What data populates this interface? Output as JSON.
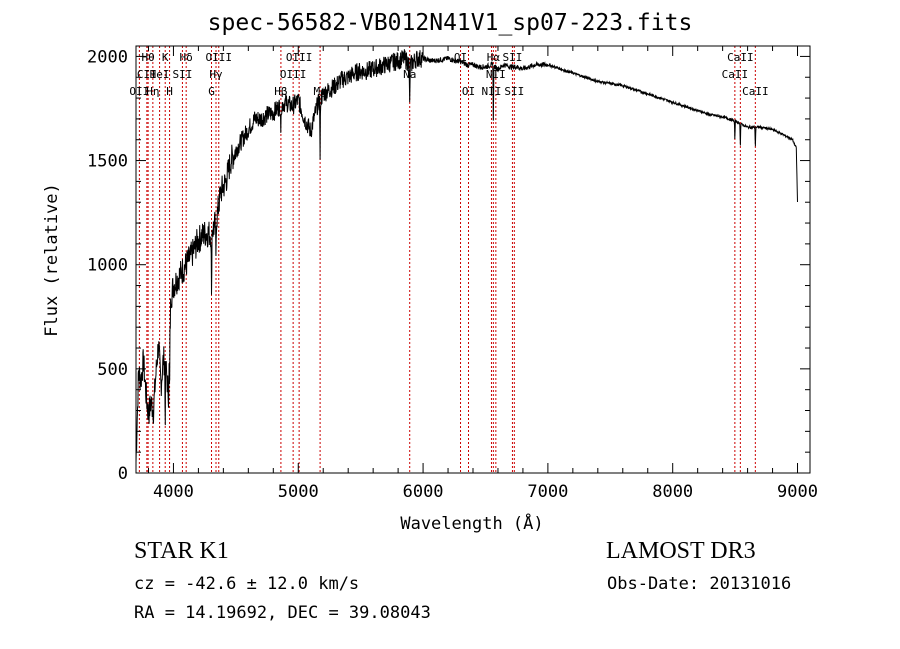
{
  "chart_data": {
    "type": "line",
    "title": "spec-56582-VB012N41V1_sp07-223.fits",
    "xlabel": "Wavelength (Å)",
    "ylabel": "Flux (relative)",
    "xlim": [
      3700,
      9100
    ],
    "ylim": [
      0,
      2050
    ],
    "xticks": [
      4000,
      5000,
      6000,
      7000,
      8000,
      9000
    ],
    "yticks": [
      0,
      500,
      1000,
      1500,
      2000
    ],
    "xtick_labels": [
      "4000",
      "5000",
      "6000",
      "7000",
      "8000",
      "9000"
    ],
    "ytick_labels": [
      "0",
      "500",
      "1000",
      "1500",
      "2000"
    ],
    "series": [
      {
        "name": "spectrum",
        "x": [
          3700,
          3720,
          3740,
          3760,
          3780,
          3800,
          3820,
          3840,
          3860,
          3880,
          3900,
          3920,
          3940,
          3960,
          3980,
          4000,
          4050,
          4100,
          4150,
          4200,
          4250,
          4300,
          4340,
          4380,
          4420,
          4460,
          4500,
          4550,
          4600,
          4650,
          4700,
          4750,
          4800,
          4850,
          4900,
          4950,
          5000,
          5050,
          5100,
          5150,
          5200,
          5250,
          5300,
          5350,
          5400,
          5450,
          5500,
          5550,
          5600,
          5650,
          5700,
          5750,
          5800,
          5850,
          5900,
          5950,
          6000,
          6050,
          6100,
          6150,
          6200,
          6250,
          6300,
          6350,
          6400,
          6450,
          6500,
          6550,
          6600,
          6650,
          6700,
          6750,
          6800,
          6850,
          6900,
          6950,
          7000,
          7100,
          7200,
          7300,
          7400,
          7500,
          7600,
          7700,
          7800,
          7900,
          8000,
          8100,
          8200,
          8300,
          8400,
          8500,
          8600,
          8700,
          8800,
          8900,
          8960,
          8990,
          9000
        ],
        "y": [
          50,
          480,
          450,
          540,
          380,
          280,
          340,
          300,
          480,
          620,
          420,
          550,
          500,
          380,
          850,
          900,
          950,
          1000,
          1050,
          1120,
          1150,
          1150,
          1200,
          1350,
          1400,
          1500,
          1550,
          1600,
          1650,
          1700,
          1700,
          1720,
          1730,
          1760,
          1780,
          1760,
          1790,
          1700,
          1640,
          1760,
          1820,
          1840,
          1860,
          1890,
          1900,
          1920,
          1930,
          1930,
          1940,
          1950,
          1960,
          1970,
          1980,
          1990,
          1960,
          1990,
          1990,
          1980,
          1980,
          1985,
          1990,
          1980,
          1975,
          1960,
          1960,
          1950,
          1950,
          1960,
          1940,
          1960,
          1950,
          1950,
          1940,
          1950,
          1960,
          1960,
          1960,
          1940,
          1920,
          1900,
          1880,
          1870,
          1860,
          1840,
          1820,
          1800,
          1780,
          1760,
          1740,
          1720,
          1710,
          1690,
          1660,
          1660,
          1650,
          1620,
          1600,
          1560,
          1300
        ]
      }
    ],
    "lines": [
      {
        "label": "Hθ",
        "wl": 3797,
        "row": 1
      },
      {
        "label": "CII",
        "wl": 3787,
        "row": 2
      },
      {
        "label": "OII",
        "wl": 3727,
        "row": 3
      },
      {
        "label": "Hη",
        "wl": 3835,
        "row": 3
      },
      {
        "label": "HeI",
        "wl": 3889,
        "row": 2
      },
      {
        "label": "K",
        "wl": 3934,
        "row": 1
      },
      {
        "label": "H",
        "wl": 3969,
        "row": 3
      },
      {
        "label": "SII",
        "wl": 4072,
        "row": 2
      },
      {
        "label": "Hδ",
        "wl": 4102,
        "row": 1
      },
      {
        "label": "G",
        "wl": 4305,
        "row": 3
      },
      {
        "label": "OIII",
        "wl": 4363,
        "row": 1
      },
      {
        "label": "Hγ",
        "wl": 4341,
        "row": 2
      },
      {
        "label": "Hβ",
        "wl": 4861,
        "row": 3
      },
      {
        "label": "OIII",
        "wl": 4959,
        "row": 2
      },
      {
        "label": "OIII",
        "wl": 5007,
        "row": 1
      },
      {
        "label": "Mg",
        "wl": 5175,
        "row": 3
      },
      {
        "label": "Na",
        "wl": 5893,
        "row": 2
      },
      {
        "label": "OI",
        "wl": 6300,
        "row": 1
      },
      {
        "label": "OI",
        "wl": 6364,
        "row": 3
      },
      {
        "label": "NII",
        "wl": 6548,
        "row": 3
      },
      {
        "label": "Hα",
        "wl": 6563,
        "row": 1
      },
      {
        "label": "NII",
        "wl": 6583,
        "row": 2
      },
      {
        "label": "SII",
        "wl": 6716,
        "row": 1
      },
      {
        "label": "SII",
        "wl": 6731,
        "row": 3
      },
      {
        "label": "CaII",
        "wl": 8498,
        "row": 2
      },
      {
        "label": "CaII",
        "wl": 8542,
        "row": 1
      },
      {
        "label": "CaII",
        "wl": 8662,
        "row": 3
      }
    ],
    "colors": {
      "spectrum": "#000000",
      "line_marker": "#cc0000",
      "axes": "#000000"
    }
  },
  "info": {
    "object_class": "STAR    K1",
    "survey": "LAMOST DR3",
    "cz": "cz = -42.6 ± 12.0 km/s",
    "obs_date": "Obs-Date: 20131016",
    "radec": "RA =  14.19692, DEC =  39.08043"
  }
}
